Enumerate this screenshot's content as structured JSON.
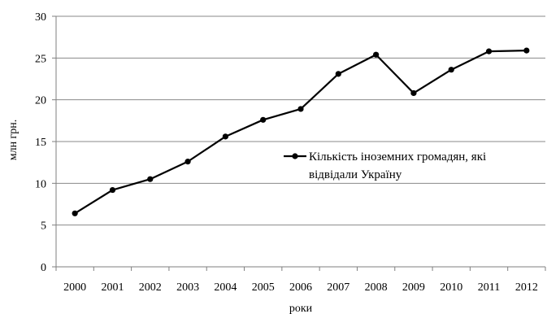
{
  "chart_data": {
    "type": "line",
    "title": "",
    "xlabel": "роки",
    "ylabel": "млн грн.",
    "categories": [
      "2000",
      "2001",
      "2002",
      "2003",
      "2004",
      "2005",
      "2006",
      "2007",
      "2008",
      "2009",
      "2010",
      "2011",
      "2012"
    ],
    "ylim": [
      0,
      30
    ],
    "yticks": [
      0,
      5,
      10,
      15,
      20,
      25,
      30
    ],
    "ytick_labels": [
      "0",
      "5",
      "10",
      "15",
      "20",
      "25",
      "30"
    ],
    "grid": true,
    "legend_position": "right",
    "series": [
      {
        "name": "Кількість іноземних громадян, які відвідали Україну",
        "name_lines": [
          "Кількість іноземних громадян, які",
          "відвідали Україну"
        ],
        "values": [
          6.4,
          9.2,
          10.5,
          12.6,
          15.6,
          17.6,
          18.9,
          23.1,
          25.4,
          20.8,
          23.6,
          25.8,
          25.9
        ],
        "color": "#000000",
        "marker": "circle"
      }
    ]
  }
}
